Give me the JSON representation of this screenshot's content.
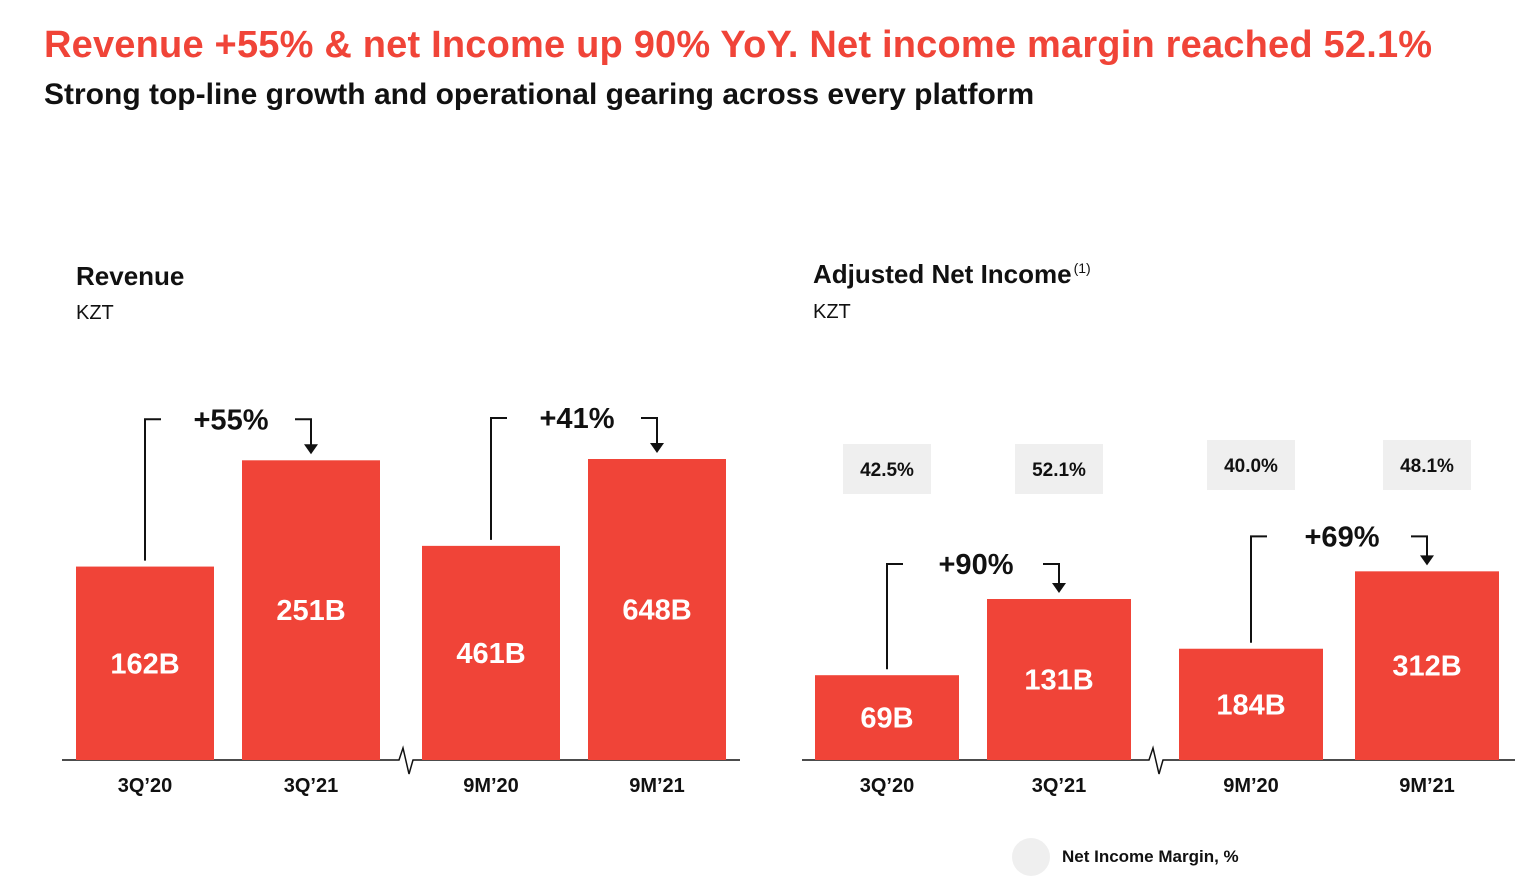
{
  "header": {
    "title": "Revenue +55% & net Income up 90% YoY. Net income margin reached 52.1%",
    "subtitle": "Strong top-line growth and operational gearing across every platform"
  },
  "colors": {
    "accent": "#f04438",
    "bar_label": "#ffffff",
    "margin_box": "#efefef",
    "axis": "#111111"
  },
  "chart_data": [
    {
      "type": "bar",
      "title": "Revenue",
      "unit_label": "KZT",
      "categories": [
        "3Q’20",
        "3Q’21",
        "9M’20",
        "9M’21"
      ],
      "values": [
        162,
        251,
        461,
        648
      ],
      "value_labels": [
        "162B",
        "251B",
        "461B",
        "648B"
      ],
      "axis_break": "between 3Q’21 and 9M’20",
      "growth_annotations": [
        {
          "from": "3Q’20",
          "to": "3Q’21",
          "label": "+55%"
        },
        {
          "from": "9M’20",
          "to": "9M’21",
          "label": "+41%"
        }
      ]
    },
    {
      "type": "bar",
      "title": "Adjusted Net Income",
      "title_footnote": "(1)",
      "unit_label": "KZT",
      "categories": [
        "3Q’20",
        "3Q’21",
        "9M’20",
        "9M’21"
      ],
      "values": [
        69,
        131,
        184,
        312
      ],
      "value_labels": [
        "69B",
        "131B",
        "184B",
        "312B"
      ],
      "margins": [
        "42.5%",
        "52.1%",
        "40.0%",
        "48.1%"
      ],
      "axis_break": "between 3Q’21 and 9M’20",
      "growth_annotations": [
        {
          "from": "3Q’20",
          "to": "3Q’21",
          "label": "+90%"
        },
        {
          "from": "9M’20",
          "to": "9M’21",
          "label": "+69%"
        }
      ],
      "legend": {
        "label": "Net Income Margin, %"
      }
    }
  ]
}
